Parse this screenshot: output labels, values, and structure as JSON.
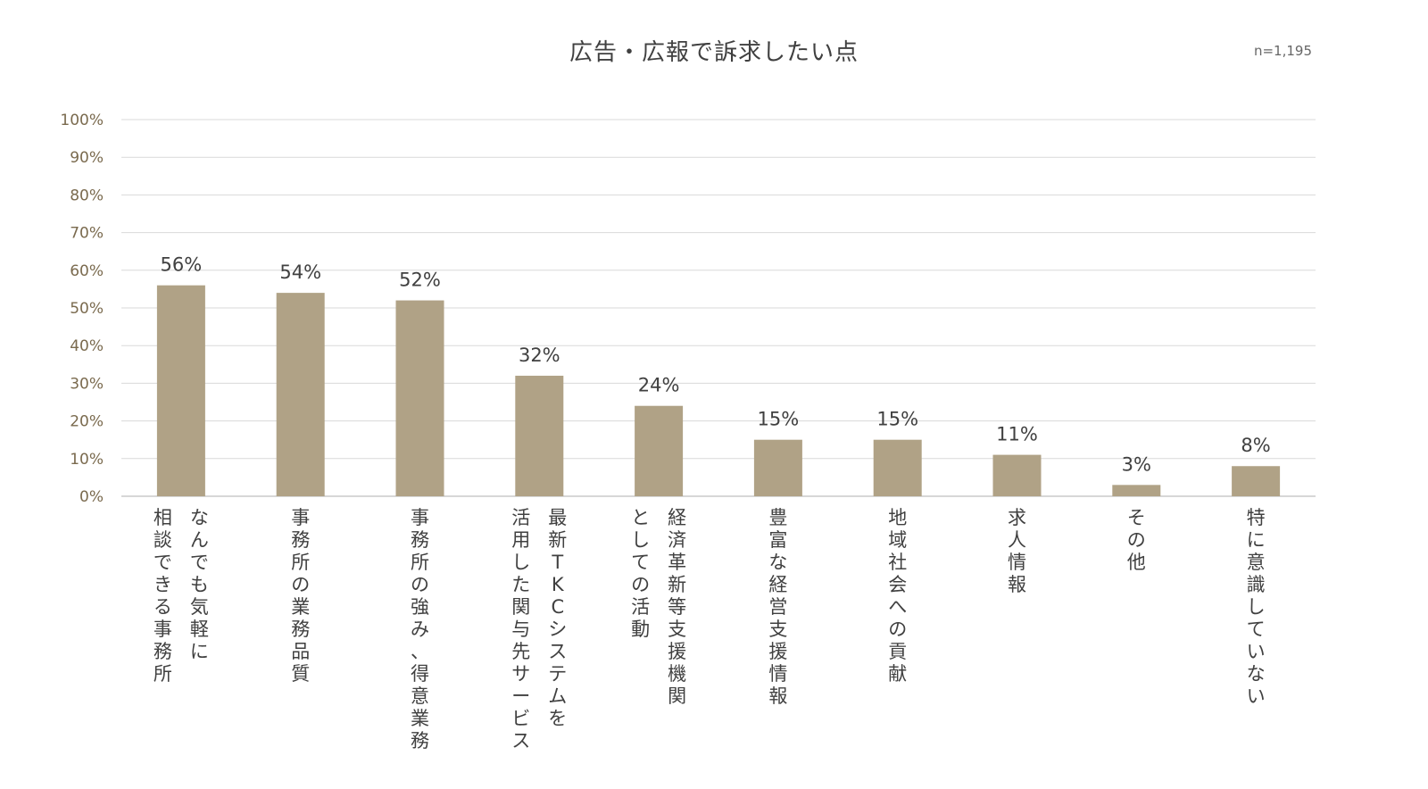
{
  "chart_data": {
    "type": "bar",
    "title": "広告・広報で訴求したい点",
    "sample_size": "n=1,195",
    "xlabel": "",
    "ylabel": "",
    "ylim": [
      0,
      100
    ],
    "yticks": [
      "0%",
      "10%",
      "20%",
      "30%",
      "40%",
      "50%",
      "60%",
      "70%",
      "80%",
      "90%",
      "100%"
    ],
    "grid": true,
    "legend": "none",
    "bar_color": "#b0a286",
    "categories": [
      "なんでも気軽に相談できる事務所",
      "事務所の業務品質",
      "事務所の強み、得意業務",
      "最新TKCシステムを活用した関与先サービス",
      "経済革新等支援機関としての活動",
      "豊富な経営支援情報",
      "地域社会への貢献",
      "求人情報",
      "その他",
      "特に意識していない"
    ],
    "category_lines": [
      [
        "なんでも気軽に",
        "相談できる事務所"
      ],
      [
        "事務所の業務品質"
      ],
      [
        "事務所の強み、得意業務"
      ],
      [
        "最新TKCシステムを",
        "活用した関与先サービス"
      ],
      [
        "経済革新等支援機関",
        "としての活動"
      ],
      [
        "豊富な経営支援情報"
      ],
      [
        "地域社会への貢献"
      ],
      [
        "求人情報"
      ],
      [
        "その他"
      ],
      [
        "特に意識していない"
      ]
    ],
    "values": [
      56,
      54,
      52,
      32,
      24,
      15,
      15,
      11,
      3,
      8
    ],
    "value_labels": [
      "56%",
      "54%",
      "52%",
      "32%",
      "24%",
      "15%",
      "15%",
      "11%",
      "3%",
      "8%"
    ]
  }
}
